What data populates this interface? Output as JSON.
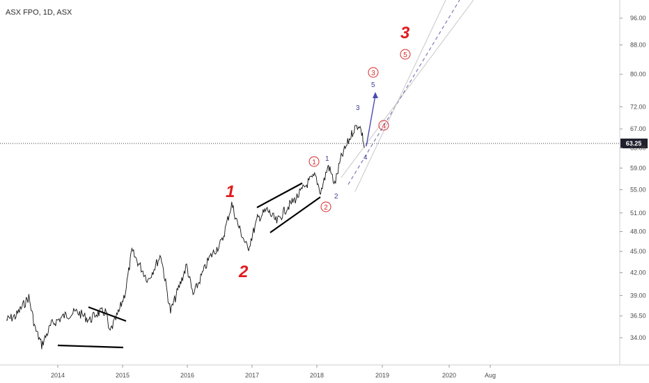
{
  "chart_data": {
    "type": "line",
    "title": "ASX FPO, 1D, ASX",
    "current_price": 63.25,
    "y_ticks": [
      "96.00",
      "88.00",
      "80.00",
      "72.00",
      "67.00",
      "63.00",
      "59.00",
      "55.00",
      "51.00",
      "48.00",
      "45.00",
      "42.00",
      "39.00",
      "36.50",
      "34.00"
    ],
    "x_ticks": [
      "2014",
      "2015",
      "2016",
      "2017",
      "2018",
      "2019",
      "2020",
      "Aug"
    ],
    "ylim": [
      32.5,
      100
    ],
    "y_scale": "log",
    "grid": false,
    "series": [
      {
        "values": [
          {
            "x": "2013.20",
            "y": 36.0
          },
          {
            "x": "2013.35",
            "y": 36.5
          },
          {
            "x": "2013.55",
            "y": 38.8
          },
          {
            "x": "2013.65",
            "y": 35.0
          },
          {
            "x": "2013.75",
            "y": 33.2
          },
          {
            "x": "2013.90",
            "y": 35.5
          },
          {
            "x": "2014.10",
            "y": 36.5
          },
          {
            "x": "2014.30",
            "y": 37.0
          },
          {
            "x": "2014.50",
            "y": 36.0
          },
          {
            "x": "2014.60",
            "y": 36.8
          },
          {
            "x": "2014.75",
            "y": 37.0
          },
          {
            "x": "2014.80",
            "y": 34.5
          },
          {
            "x": "2014.95",
            "y": 37.0
          },
          {
            "x": "2015.05",
            "y": 39.5
          },
          {
            "x": "2015.15",
            "y": 45.0
          },
          {
            "x": "2015.40",
            "y": 41.0
          },
          {
            "x": "2015.60",
            "y": 44.5
          },
          {
            "x": "2015.75",
            "y": 37.0
          },
          {
            "x": "2015.90",
            "y": 40.5
          },
          {
            "x": "2016.00",
            "y": 43.0
          },
          {
            "x": "2016.10",
            "y": 39.0
          },
          {
            "x": "2016.35",
            "y": 44.0
          },
          {
            "x": "2016.55",
            "y": 46.5
          },
          {
            "x": "2016.70",
            "y": 52.5
          },
          {
            "x": "2016.80",
            "y": 49.0
          },
          {
            "x": "2016.95",
            "y": 45.3
          },
          {
            "x": "2017.10",
            "y": 50.0
          },
          {
            "x": "2017.25",
            "y": 51.5
          },
          {
            "x": "2017.40",
            "y": 49.5
          },
          {
            "x": "2017.55",
            "y": 51.8
          },
          {
            "x": "2017.70",
            "y": 53.5
          },
          {
            "x": "2017.90",
            "y": 56.5
          },
          {
            "x": "2018.00",
            "y": 57.5
          },
          {
            "x": "2018.08",
            "y": 54.5
          },
          {
            "x": "2018.20",
            "y": 59.5
          },
          {
            "x": "2018.30",
            "y": 56.0
          },
          {
            "x": "2018.40",
            "y": 61.0
          },
          {
            "x": "2018.50",
            "y": 64.0
          },
          {
            "x": "2018.60",
            "y": 67.0
          },
          {
            "x": "2018.68",
            "y": 68.0
          },
          {
            "x": "2018.73",
            "y": 65.5
          },
          {
            "x": "2018.76",
            "y": 63.0
          }
        ]
      }
    ],
    "annotations": {
      "big_waves": [
        "1",
        "2",
        "3"
      ],
      "small_waves": [
        "1",
        "2",
        "3",
        "4",
        "5"
      ],
      "circled_waves": [
        "1",
        "2",
        "3",
        "4",
        "5"
      ]
    }
  }
}
